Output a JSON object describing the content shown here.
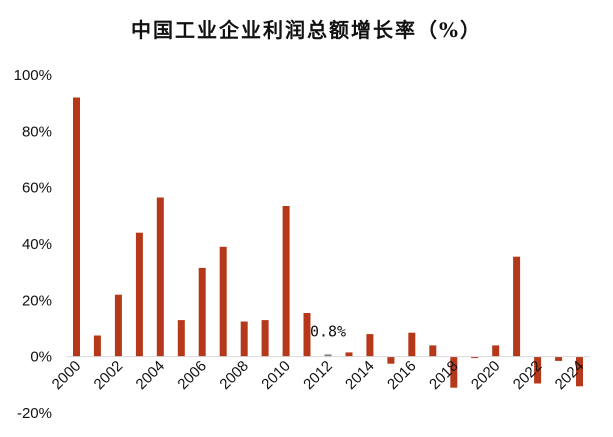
{
  "chart_data": {
    "type": "bar",
    "title": "中国工业企业利润总额增长率（%）",
    "xlabel": "",
    "ylabel": "",
    "categories": [
      "2000",
      "2001",
      "2002",
      "2003",
      "2004",
      "2005",
      "2006",
      "2007",
      "2008",
      "2009",
      "2010",
      "2011",
      "2012",
      "2013",
      "2014",
      "2015",
      "2016",
      "2017",
      "2018",
      "2019",
      "2020",
      "2021",
      "2022",
      "2023",
      "2024"
    ],
    "x_tick_labels": [
      "2000",
      "2002",
      "2004",
      "2006",
      "2008",
      "2010",
      "2012",
      "2014",
      "2016",
      "2018",
      "2020",
      "2022",
      "2024"
    ],
    "values": [
      92,
      7.5,
      22,
      44,
      56.5,
      13,
      31.5,
      39,
      12.5,
      13,
      53.5,
      15.5,
      0.8,
      1.5,
      8,
      -2.5,
      8.5,
      4,
      -11,
      -0.5,
      4,
      35.5,
      -9.5,
      -1.5,
      -10.5
    ],
    "y_tick_labels": [
      "-20%",
      "0%",
      "20%",
      "40%",
      "60%",
      "80%",
      "100%"
    ],
    "y_ticks": [
      -20,
      0,
      20,
      40,
      60,
      80,
      100
    ],
    "ylim": [
      -20,
      100
    ],
    "grid": false,
    "legend": "none",
    "annotation": {
      "text": "0.8%",
      "category": "2012"
    },
    "colors": {
      "bar": "#B5381A",
      "highlight": "#7F7F7F",
      "axis": "#D9D9D9",
      "text": "#111111"
    }
  }
}
